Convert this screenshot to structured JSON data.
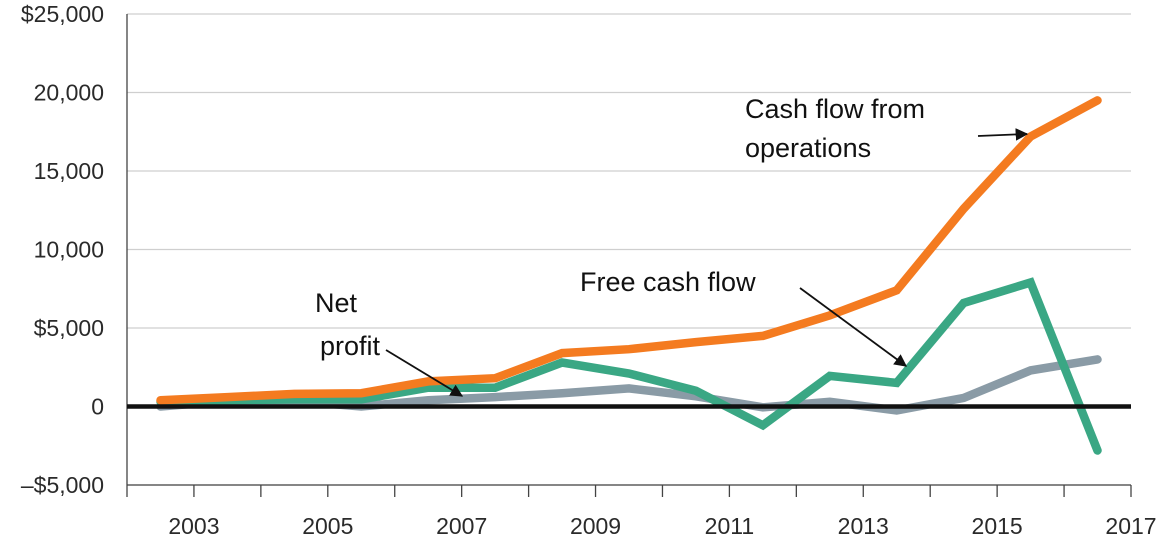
{
  "chart_data": {
    "type": "line",
    "title": "",
    "xlabel": "",
    "ylabel": "",
    "x": [
      2002.5,
      2003.5,
      2004.5,
      2005.5,
      2006.5,
      2007.5,
      2008.5,
      2009.5,
      2010.5,
      2011.5,
      2012.5,
      2013.5,
      2014.5,
      2015.5,
      2016.5
    ],
    "xlim": [
      2002,
      2017
    ],
    "ylim": [
      -5000,
      25000
    ],
    "x_ticks": [
      2003,
      2005,
      2007,
      2009,
      2011,
      2013,
      2015,
      2017
    ],
    "x_tick_labels": [
      "2003",
      "2005",
      "2007",
      "2009",
      "2011",
      "2013",
      "2015",
      "2017"
    ],
    "y_ticks": [
      -5000,
      0,
      5000,
      10000,
      15000,
      20000,
      25000
    ],
    "y_tick_labels": [
      "–$5,000",
      "0",
      "$5,000",
      "10,000",
      "15,000",
      "20,000",
      "$25,000"
    ],
    "grid": "horizontal",
    "zero_line": true,
    "series": [
      {
        "name": "Cash flow from operations",
        "color": "#f47b20",
        "values": [
          400,
          600,
          800,
          850,
          1600,
          1800,
          3400,
          3650,
          4100,
          4500,
          5800,
          7400,
          12600,
          17200,
          19500
        ]
      },
      {
        "name": "Free cash flow",
        "color": "#3aa784",
        "values": [
          300,
          400,
          450,
          450,
          1200,
          1200,
          2800,
          2100,
          1000,
          -1200,
          1950,
          1500,
          6600,
          7900,
          -2800
        ]
      },
      {
        "name": "Net profit",
        "color": "#8a9ba6",
        "values": [
          0,
          350,
          350,
          0,
          400,
          600,
          850,
          1150,
          650,
          -50,
          300,
          -250,
          550,
          2300,
          3000
        ]
      }
    ],
    "annotations": [
      {
        "text": [
          "Cash flow from",
          "operations"
        ],
        "series": "Cash flow from operations"
      },
      {
        "text": [
          "Free cash flow"
        ],
        "series": "Free cash flow"
      },
      {
        "text": [
          "Net",
          "profit"
        ],
        "series": "Net profit"
      }
    ]
  }
}
